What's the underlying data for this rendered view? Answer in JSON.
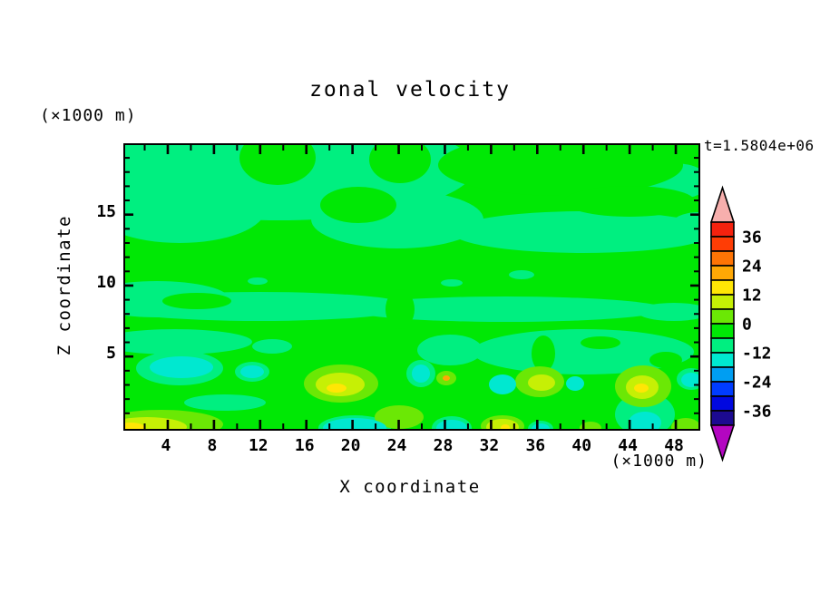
{
  "figure": {
    "title": "zonal velocity",
    "t_label": "t=1.5804e+06",
    "background": "#ffffff"
  },
  "axes": {
    "x": {
      "label": "X coordinate",
      "unit_label": "(×1000 m)",
      "min": 0.31,
      "max": 49.96,
      "major_ticks": [
        4,
        8,
        12,
        16,
        20,
        24,
        28,
        32,
        36,
        40,
        44,
        48
      ],
      "minor_ticks": [
        2,
        6,
        10,
        14,
        18,
        22,
        26,
        30,
        34,
        38,
        42,
        46
      ]
    },
    "y": {
      "label": "Z coordinate",
      "unit_label": "(×1000 m)",
      "min": -0.1,
      "max": 19.9,
      "major_ticks": [
        5,
        10,
        15
      ],
      "minor_ticks": [
        1,
        2,
        3,
        4,
        6,
        7,
        8,
        9,
        11,
        12,
        13,
        14,
        16,
        17,
        18,
        19
      ]
    }
  },
  "colorbar": {
    "range_min": -42,
    "range_max": 42,
    "step": 6,
    "labels": [
      36,
      24,
      12,
      0,
      -12,
      -24,
      -36
    ],
    "arrow_top_color": "#F7AFAD",
    "arrow_bottom_color": "#B306C1",
    "segments": [
      {
        "from": 36,
        "to": 42,
        "color": "#F5220E"
      },
      {
        "from": 30,
        "to": 36,
        "color": "#FF3D05"
      },
      {
        "from": 24,
        "to": 30,
        "color": "#FF7405"
      },
      {
        "from": 18,
        "to": 24,
        "color": "#FFA805"
      },
      {
        "from": 12,
        "to": 18,
        "color": "#FFE605"
      },
      {
        "from": 6,
        "to": 12,
        "color": "#C6F005"
      },
      {
        "from": 0,
        "to": 6,
        "color": "#6BE805"
      },
      {
        "from": -6,
        "to": 0,
        "color": "#00E805"
      },
      {
        "from": -12,
        "to": -6,
        "color": "#00EF80"
      },
      {
        "from": -18,
        "to": -12,
        "color": "#00E8D0"
      },
      {
        "from": -24,
        "to": -18,
        "color": "#009EF2"
      },
      {
        "from": -30,
        "to": -24,
        "color": "#003CFF"
      },
      {
        "from": -36,
        "to": -30,
        "color": "#0008E0"
      },
      {
        "from": -42,
        "to": -36,
        "color": "#1C0A91"
      }
    ]
  },
  "chart_data": {
    "type": "filled_contour",
    "title": "zonal velocity",
    "time_annotation": "t=1.5804e+06",
    "xlabel": "X coordinate (×1000 m)",
    "ylabel": "Z coordinate (×1000 m)",
    "xlim": [
      0.31,
      49.96
    ],
    "ylim": [
      -0.1,
      19.9
    ],
    "contour_levels": [
      -42,
      -36,
      -30,
      -24,
      -18,
      -12,
      -6,
      0,
      6,
      12,
      18,
      24,
      30,
      36,
      42
    ],
    "legend_position": "right-colorbar",
    "grid": false,
    "value_summary": "Velocity field mostly between -12 and 0 (two greens); yellow-green/yellow patches (0 to 18) and cyan patches (-18 to -12) concentrated below z≈5 and along the bottom boundary.",
    "palette": {
      "s3": "#FF7405",
      "s4": "#FFA805",
      "s5": "#FFE605",
      "s6": "#C6F005",
      "s7": "#6BE805",
      "s8": "#00E805",
      "s9": "#00EF80",
      "s10": "#00E8D0"
    },
    "background_value_color": "s8",
    "field_regions": [
      [
        "s9",
        170,
        25,
        215,
        58
      ],
      [
        "s9",
        60,
        70,
        95,
        38
      ],
      [
        "s9",
        300,
        82,
        95,
        32
      ],
      [
        "s9",
        505,
        96,
        145,
        23
      ],
      [
        "s9",
        605,
        40,
        40,
        20
      ],
      [
        "s9",
        632,
        88,
        30,
        14
      ],
      [
        "s8",
        168,
        14,
        42,
        30
      ],
      [
        "s8",
        257,
        66,
        42,
        20
      ],
      [
        "s8",
        303,
        16,
        34,
        26
      ],
      [
        "s8",
        480,
        22,
        135,
        34
      ],
      [
        "s8",
        556,
        62,
        72,
        17
      ],
      [
        "s9",
        148,
        178,
        168,
        16
      ],
      [
        "s9",
        420,
        181,
        175,
        14
      ],
      [
        "s9",
        605,
        184,
        40,
        10
      ],
      [
        "s9",
        35,
        170,
        80,
        20
      ],
      [
        "s9",
        146,
        150,
        11,
        4
      ],
      [
        "s9",
        360,
        152,
        12,
        4
      ],
      [
        "s9",
        437,
        143,
        14,
        5
      ],
      [
        "s8",
        79,
        172,
        38,
        9
      ],
      [
        "s8",
        303,
        181,
        16,
        22
      ],
      [
        "s9",
        55,
        217,
        85,
        14
      ],
      [
        "s9",
        162,
        222,
        22,
        8
      ],
      [
        "s9",
        358,
        226,
        36,
        17
      ],
      [
        "s9",
        505,
        228,
        122,
        25
      ],
      [
        "s9",
        110,
        284,
        45,
        9
      ],
      [
        "s9",
        573,
        297,
        33,
        24
      ],
      [
        "s9",
        624,
        258,
        16,
        12
      ],
      [
        "s9",
        60,
        246,
        48,
        19
      ],
      [
        "s9",
        140,
        250,
        19,
        11
      ],
      [
        "s9",
        326,
        252,
        16,
        15
      ],
      [
        "s9",
        253,
        312,
        40,
        14
      ],
      [
        "s9",
        360,
        312,
        22,
        13
      ],
      [
        "s9",
        458,
        313,
        14,
        9
      ],
      [
        "s8",
        461,
        230,
        13,
        20
      ],
      [
        "s8",
        524,
        218,
        22,
        7
      ],
      [
        "s8",
        596,
        237,
        18,
        9
      ],
      [
        "s7",
        238,
        263,
        41,
        21
      ],
      [
        "s6",
        237,
        264,
        27,
        13
      ],
      [
        "s5",
        233,
        268,
        11,
        5
      ],
      [
        "s7",
        302,
        300,
        27,
        13
      ],
      [
        "s7",
        354,
        257,
        11,
        8
      ],
      [
        "s4",
        354,
        257,
        4,
        3
      ],
      [
        "s7",
        457,
        261,
        27,
        17
      ],
      [
        "s6",
        459,
        262,
        15,
        9
      ],
      [
        "s7",
        571,
        266,
        31,
        23
      ],
      [
        "s6",
        570,
        267,
        18,
        13
      ],
      [
        "s5",
        569,
        268,
        8,
        5
      ],
      [
        "s7",
        40,
        308,
        68,
        16
      ],
      [
        "s6",
        24,
        311,
        44,
        11
      ],
      [
        "s5",
        6,
        312,
        16,
        6
      ],
      [
        "s7",
        416,
        310,
        24,
        12
      ],
      [
        "s6",
        416,
        311,
        18,
        9
      ],
      [
        "s5",
        419,
        312,
        5,
        4
      ],
      [
        "s7",
        513,
        312,
        12,
        7
      ],
      [
        "s7",
        618,
        311,
        16,
        10
      ],
      [
        "s10",
        62,
        245,
        35,
        12
      ],
      [
        "s10",
        140,
        250,
        13,
        7
      ],
      [
        "s10",
        326,
        252,
        10,
        10
      ],
      [
        "s10",
        416,
        264,
        15,
        11
      ],
      [
        "s10",
        496,
        263,
        10,
        8
      ],
      [
        "s10",
        253,
        312,
        35,
        11
      ],
      [
        "s10",
        360,
        312,
        17,
        9
      ],
      [
        "s10",
        458,
        313,
        10,
        6
      ],
      [
        "s10",
        573,
        306,
        18,
        12
      ],
      [
        "s10",
        624,
        259,
        11,
        8
      ]
    ]
  }
}
